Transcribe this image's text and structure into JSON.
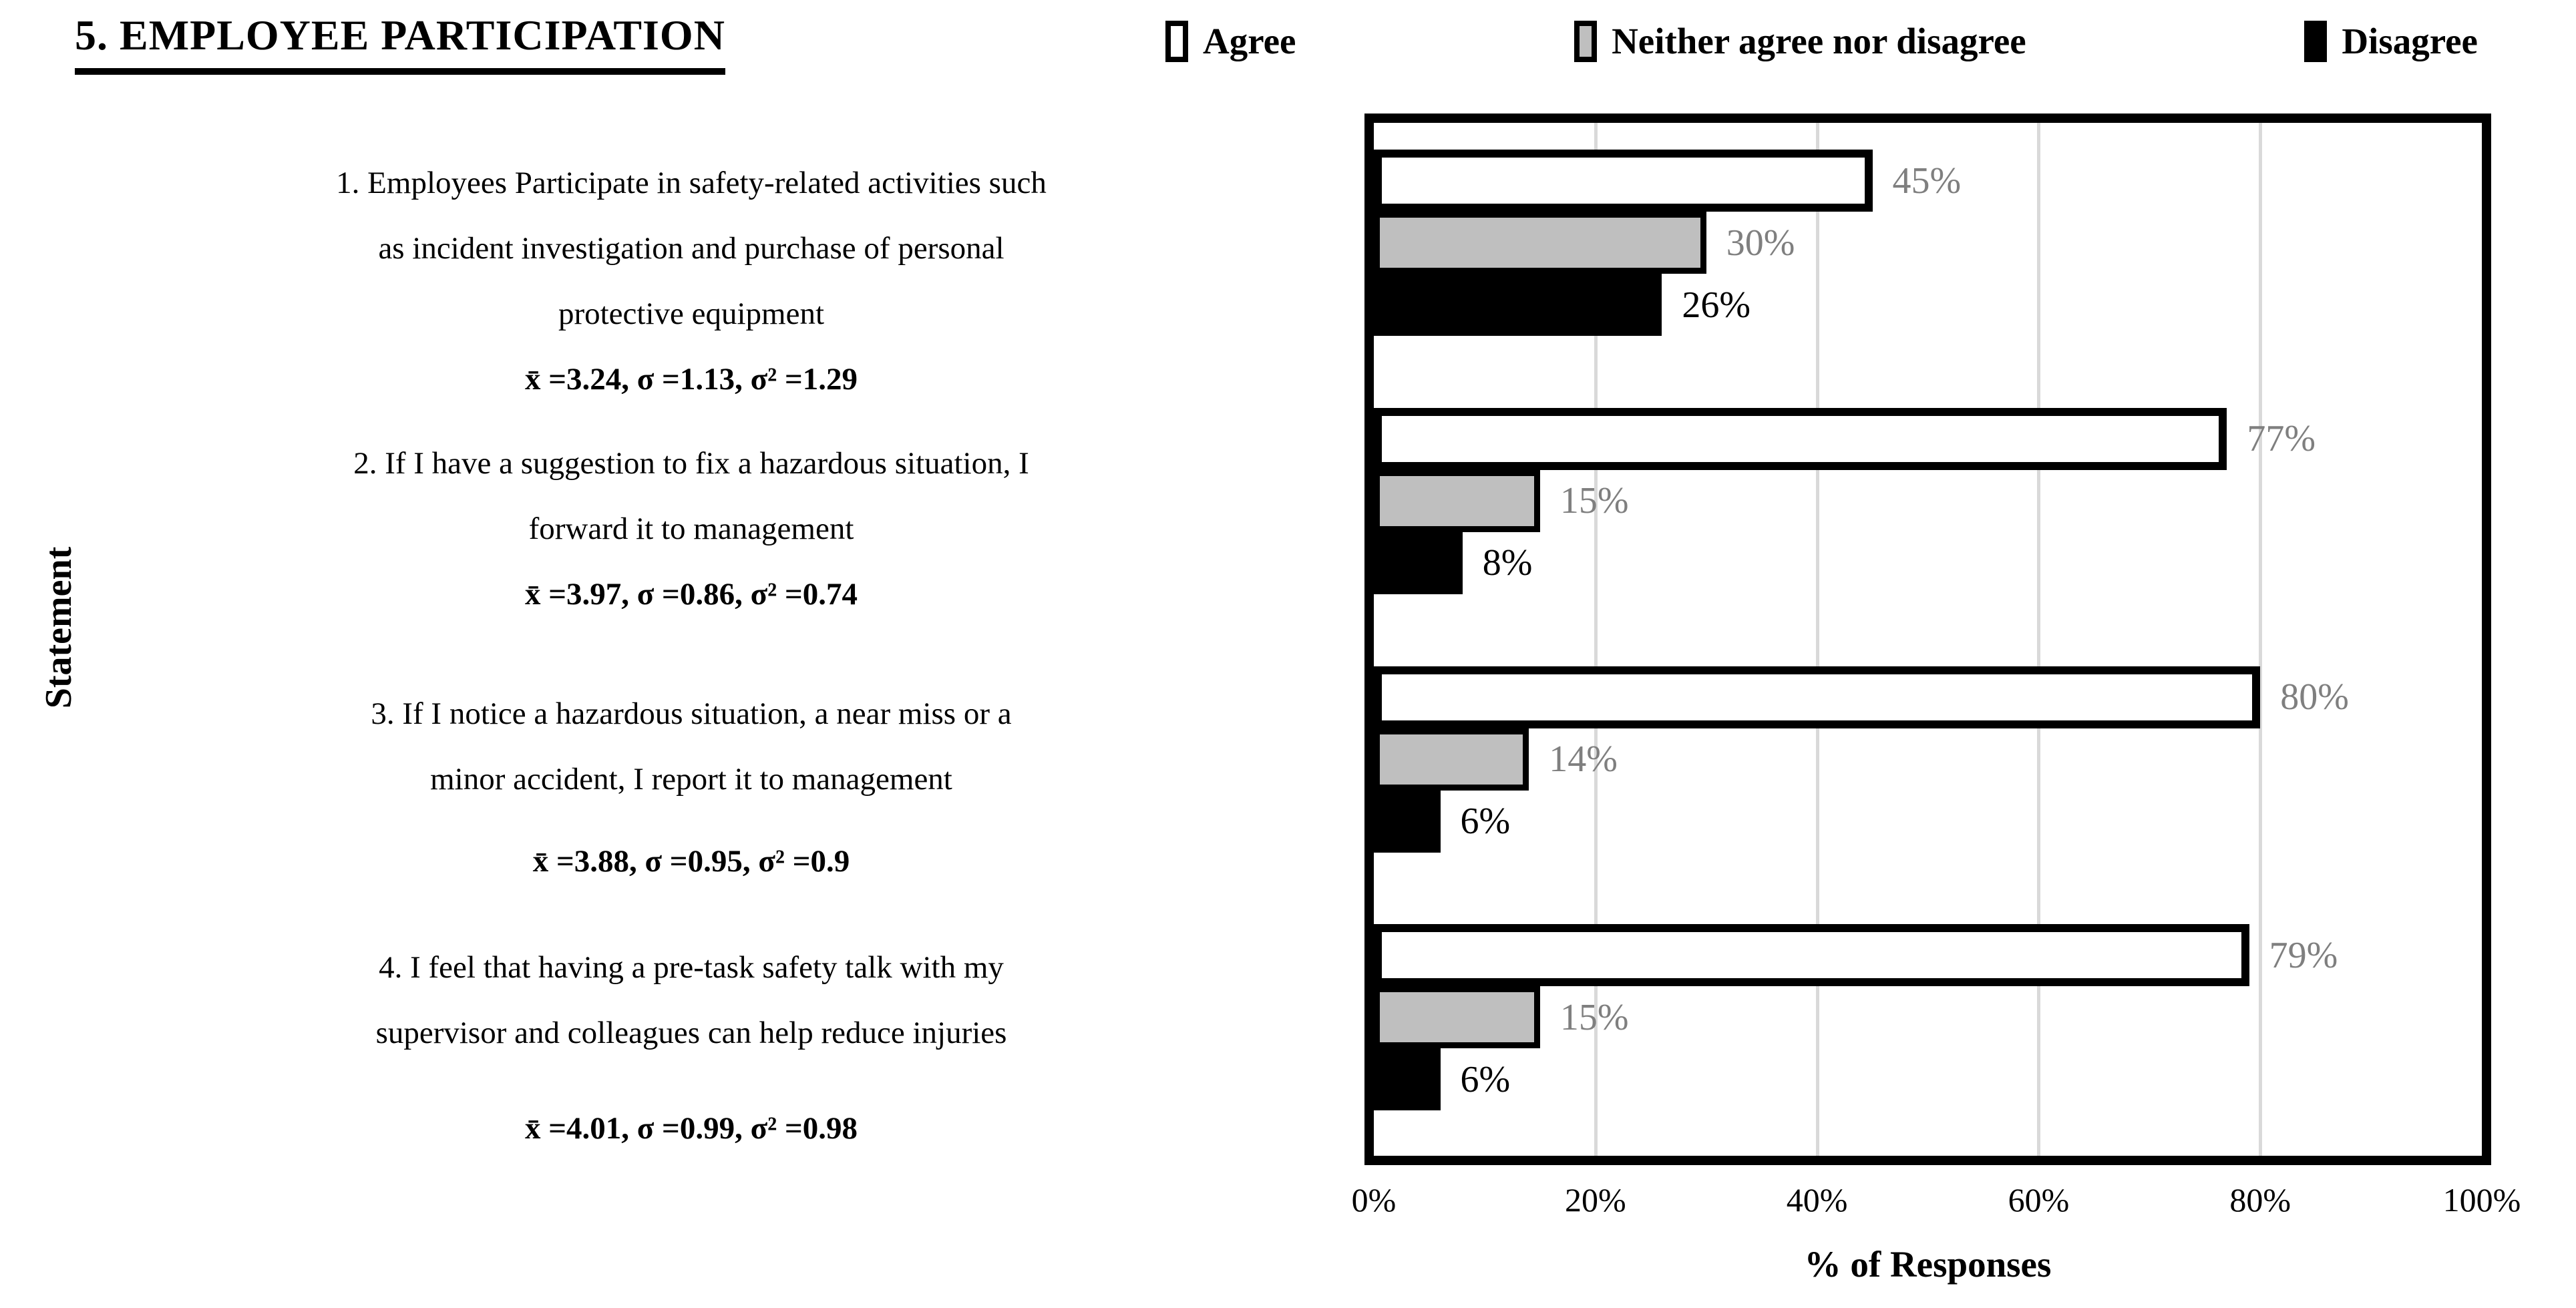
{
  "title": "5. EMPLOYEE PARTICIPATION",
  "y_axis_label": "Statement",
  "x_axis_label": "% of Responses",
  "colors": {
    "agree_fill": "#ffffff",
    "neither_fill": "#bfbfbf",
    "disagree_fill": "#000000",
    "gridline": "#d9d9d9",
    "value_label_gray": "#7f7f7f",
    "border": "#000000"
  },
  "chart_data": {
    "type": "bar",
    "orientation": "horizontal",
    "title": "5. EMPLOYEE PARTICIPATION",
    "xlabel": "% of Responses",
    "ylabel": "Statement",
    "xlim": [
      0,
      100
    ],
    "x_ticks": [
      "0%",
      "20%",
      "40%",
      "60%",
      "80%",
      "100%"
    ],
    "gridlines_percent": [
      20,
      40,
      60,
      80
    ],
    "grid": "vertical gridlines every 20%",
    "legend_position": "top",
    "categories": [
      {
        "lines": [
          "1. Employees Participate in safety-related activities such",
          "as incident investigation and purchase of personal",
          "protective equipment"
        ],
        "stats": "x̄ =3.24, σ =1.13, σ² =1.29"
      },
      {
        "lines": [
          "2. If I have a suggestion to fix a hazardous situation, I",
          "forward it to management"
        ],
        "stats": "x̄ =3.97, σ =0.86, σ² =0.74"
      },
      {
        "lines": [
          "3. If I notice a hazardous situation, a near miss or a",
          "minor accident, I report it to management"
        ],
        "stats": "x̄ =3.88, σ =0.95, σ² =0.9"
      },
      {
        "lines": [
          "4. I feel that having a pre-task safety talk with my",
          "supervisor and colleagues can help reduce injuries"
        ],
        "stats": "x̄ =4.01, σ =0.99, σ² =0.98"
      }
    ],
    "series": [
      {
        "name": "Agree",
        "values": [
          45,
          77,
          80,
          79
        ],
        "labels": [
          "45%",
          "77%",
          "80%",
          "79%"
        ],
        "fill": "#ffffff",
        "label_color": "#7f7f7f",
        "border_px": 12
      },
      {
        "name": "Neither agree nor disagree",
        "values": [
          30,
          15,
          14,
          15
        ],
        "labels": [
          "30%",
          "15%",
          "14%",
          "15%"
        ],
        "fill": "#bfbfbf",
        "label_color": "#7f7f7f",
        "border_px": 9
      },
      {
        "name": "Disagree",
        "values": [
          26,
          8,
          6,
          6
        ],
        "labels": [
          "26%",
          "8%",
          "6%",
          "6%"
        ],
        "fill": "#000000",
        "label_color": "#000000",
        "border_px": 0
      }
    ]
  }
}
